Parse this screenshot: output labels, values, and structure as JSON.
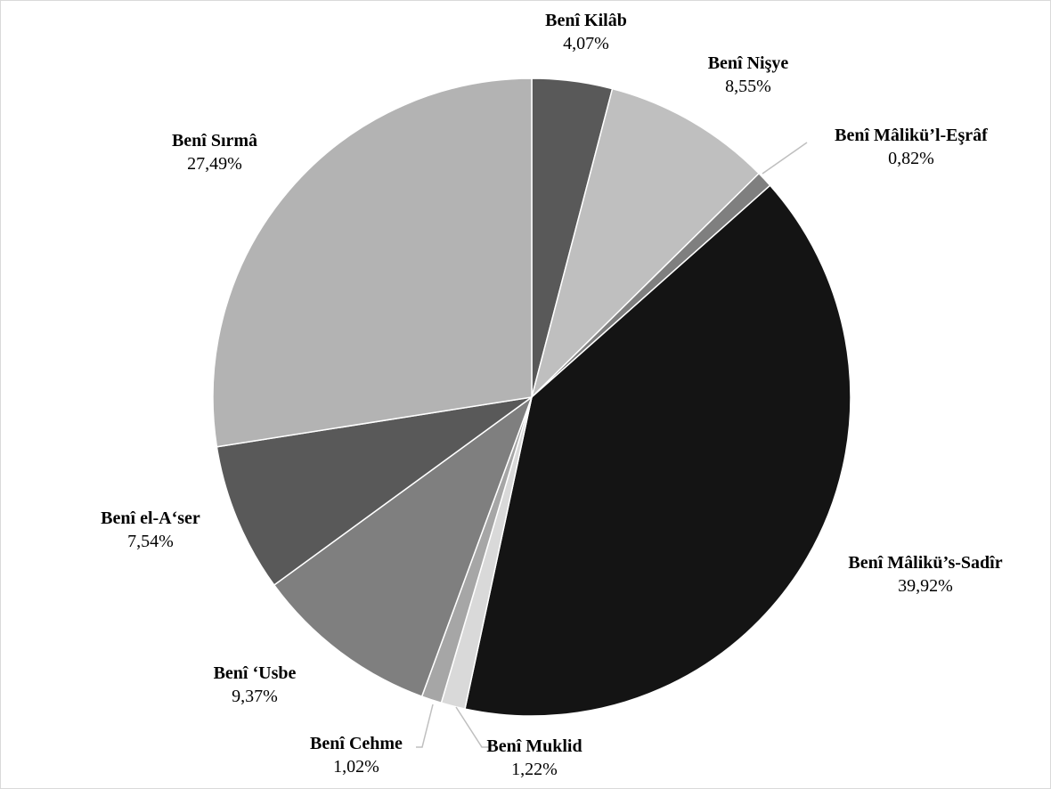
{
  "chart_data": {
    "type": "pie",
    "start_angle_deg": 0,
    "direction": "clockwise",
    "slice_border_color": "#ffffff",
    "label_format": "name and percent",
    "series": [
      {
        "name": "Benî Kilâb",
        "value": 4.07,
        "label": "4,07%",
        "color": "#595959"
      },
      {
        "name": "Benî Nişye",
        "value": 8.55,
        "label": "8,55%",
        "color": "#bfbfbf"
      },
      {
        "name": "Benî Mâlikü’l-Eşrâf",
        "value": 0.82,
        "label": "0,82%",
        "color": "#7f7f7f"
      },
      {
        "name": "Benî Mâlikü’s-Sadîr",
        "value": 39.92,
        "label": "39,92%",
        "color": "#141414"
      },
      {
        "name": "Benî Muklid",
        "value": 1.22,
        "label": "1,22%",
        "color": "#d9d9d9"
      },
      {
        "name": "Benî Cehme",
        "value": 1.02,
        "label": "1,02%",
        "color": "#a6a6a6"
      },
      {
        "name": "Benî ‘Usbe",
        "value": 9.37,
        "label": "9,37%",
        "color": "#7f7f7f"
      },
      {
        "name": "Benî el-A‘ser",
        "value": 7.54,
        "label": "7,54%",
        "color": "#595959"
      },
      {
        "name": "Benî Sırmâ",
        "value": 27.49,
        "label": "27,49%",
        "color": "#b3b3b3"
      }
    ]
  }
}
